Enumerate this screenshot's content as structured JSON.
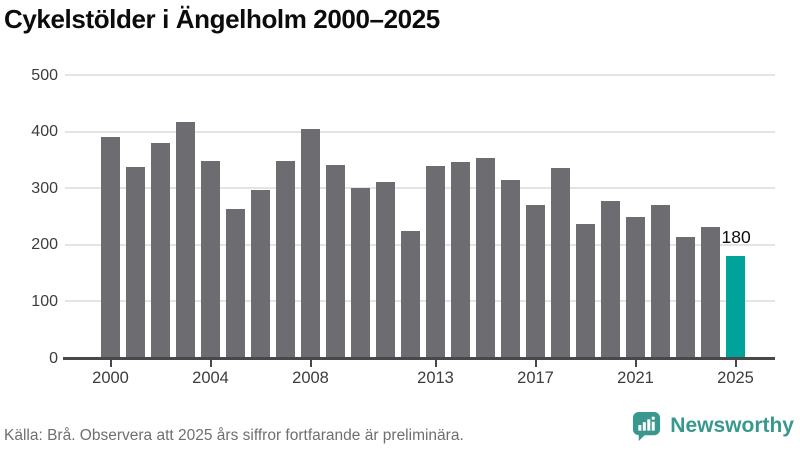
{
  "chart_data": {
    "type": "bar",
    "title": "Cykelstölder i Ängelholm 2000–2025",
    "categories": [
      2000,
      2001,
      2002,
      2003,
      2004,
      2005,
      2006,
      2007,
      2008,
      2009,
      2010,
      2011,
      2012,
      2013,
      2014,
      2015,
      2016,
      2017,
      2018,
      2019,
      2020,
      2021,
      2022,
      2023,
      2024,
      2025
    ],
    "values": [
      390,
      338,
      380,
      417,
      348,
      264,
      297,
      348,
      405,
      342,
      300,
      312,
      224,
      340,
      347,
      353,
      315,
      270,
      336,
      237,
      278,
      250,
      270,
      214,
      232,
      180
    ],
    "xlabel": "",
    "ylabel": "",
    "ylim": [
      0,
      500
    ],
    "y_ticks": [
      0,
      100,
      200,
      300,
      400,
      500
    ],
    "x_tick_years": [
      2000,
      2004,
      2008,
      2013,
      2017,
      2021,
      2025
    ],
    "grid": "horizontal",
    "legend": "none",
    "highlight": {
      "year": 2025,
      "value": 180,
      "label": "180"
    },
    "colors": {
      "bar": "#6c6c71",
      "highlight": "#00a39a",
      "grid": "#e4e4e4",
      "axis": "#48484b",
      "tick_label": "#3d3d3d",
      "value_label": "#0d0d0d"
    }
  },
  "footer": {
    "source_note": "Källa: Brå. Observera att 2025 års siffror fortfarande är preliminära.",
    "brand_name": "Newsworthy",
    "brand_color": "#39988e"
  }
}
